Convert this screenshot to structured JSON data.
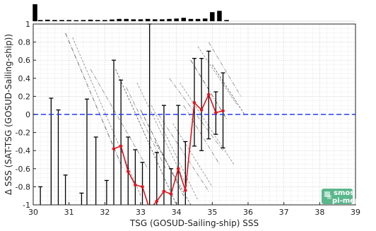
{
  "chart_data": {
    "type": "line",
    "xlabel": "TSG (GOSUD-Sailing-ship) SSS",
    "ylabel": "Δ SSS (SAT-TSG (GOSUD-Sailing-ship))",
    "xlim": [
      30,
      39
    ],
    "ylim": [
      -1,
      1
    ],
    "xticks": [
      "30",
      "31",
      "32",
      "33",
      "34",
      "35",
      "36",
      "37",
      "38",
      "39"
    ],
    "yticks": [
      "-1",
      "-0.8",
      "-0.6",
      "-0.4",
      "-0.2",
      "0",
      "0.2",
      "0.4",
      "0.6",
      "0.8",
      "1"
    ],
    "grid": true,
    "reference_line": {
      "y": 0,
      "style": "dashed",
      "color": "#1f3bff"
    },
    "mean_series": {
      "color": "#e0141e",
      "x": [
        32.25,
        32.45,
        32.65,
        32.85,
        33.05,
        33.25,
        33.45,
        33.65,
        33.85,
        34.05,
        34.25,
        34.5,
        34.7,
        34.9,
        35.1,
        35.3
      ],
      "y": [
        -0.38,
        -0.35,
        -0.63,
        -0.78,
        -0.8,
        -1.05,
        -0.96,
        -0.85,
        -0.88,
        -0.6,
        -0.84,
        0.13,
        0.05,
        0.22,
        0.02,
        0.04
      ]
    },
    "error_bars": [
      {
        "x": 30.2,
        "low": -1.0,
        "high": -0.8
      },
      {
        "x": 30.5,
        "low": -1.0,
        "high": 0.18
      },
      {
        "x": 30.7,
        "low": -1.0,
        "high": 0.05
      },
      {
        "x": 30.9,
        "low": -1.0,
        "high": -0.67
      },
      {
        "x": 31.35,
        "low": -1.0,
        "high": -0.87
      },
      {
        "x": 31.5,
        "low": -1.0,
        "high": 0.17
      },
      {
        "x": 31.75,
        "low": -1.0,
        "high": -0.25
      },
      {
        "x": 32.05,
        "low": -1.0,
        "high": -0.73
      },
      {
        "x": 32.25,
        "low": -1.0,
        "high": 0.6
      },
      {
        "x": 32.45,
        "low": -1.0,
        "high": 0.38
      },
      {
        "x": 32.65,
        "low": -1.0,
        "high": -0.25
      },
      {
        "x": 32.85,
        "low": -1.0,
        "high": -0.39
      },
      {
        "x": 33.05,
        "low": -1.0,
        "high": -0.53
      },
      {
        "x": 33.25,
        "low": -1.0,
        "high": 1.0
      },
      {
        "x": 33.45,
        "low": -1.0,
        "high": -0.42
      },
      {
        "x": 33.65,
        "low": -1.0,
        "high": 0.1
      },
      {
        "x": 33.85,
        "low": -1.0,
        "high": -0.6
      },
      {
        "x": 34.05,
        "low": -1.0,
        "high": 0.1
      },
      {
        "x": 34.25,
        "low": -1.0,
        "high": -0.3
      },
      {
        "x": 34.5,
        "low": -0.35,
        "high": 0.62
      },
      {
        "x": 34.7,
        "low": -0.4,
        "high": 0.62
      },
      {
        "x": 34.9,
        "low": -0.27,
        "high": 0.7
      },
      {
        "x": 35.1,
        "low": -0.22,
        "high": 0.25
      },
      {
        "x": 35.3,
        "low": -0.37,
        "high": 0.46
      }
    ],
    "histogram": {
      "x": [
        30.05,
        30.2,
        30.4,
        30.6,
        30.8,
        31.0,
        31.2,
        31.4,
        31.6,
        31.8,
        32.0,
        32.2,
        32.4,
        32.6,
        32.8,
        33.0,
        33.2,
        33.4,
        33.6,
        33.8,
        34.0,
        34.2,
        34.4,
        34.6,
        34.8,
        35.0,
        35.2,
        35.4
      ],
      "counts": [
        90,
        6,
        8,
        6,
        6,
        6,
        5,
        6,
        8,
        6,
        6,
        9,
        12,
        12,
        10,
        10,
        12,
        10,
        10,
        12,
        14,
        18,
        12,
        12,
        14,
        48,
        55,
        6
      ]
    }
  },
  "logo": {
    "line1": "smos",
    "line2": "pi-mep",
    "color": "#3daa78"
  }
}
